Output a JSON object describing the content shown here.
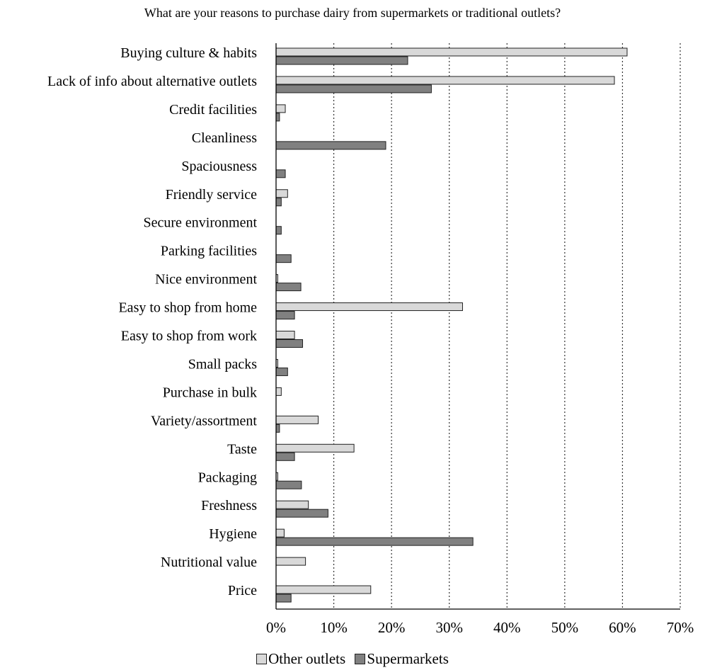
{
  "chart_data": {
    "type": "bar",
    "orientation": "horizontal",
    "title": "What are your reasons to purchase dairy from supermarkets or traditional outlets?",
    "categories": [
      "Buying culture & habits",
      "Lack of info about alternative outlets",
      "Credit facilities",
      "Cleanliness",
      "Spaciousness",
      "Friendly service",
      "Secure environment",
      "Parking facilities",
      "Nice environment",
      "Easy to shop from home",
      "Easy to shop from work",
      "Small packs",
      "Purchase in bulk",
      "Variety/assortment",
      "Taste",
      "Packaging",
      "Freshness",
      "Hygiene",
      "Nutritional value",
      "Price"
    ],
    "series": [
      {
        "name": "Other outlets",
        "color": "#d9d9d9",
        "values": [
          60.8,
          58.6,
          1.6,
          0,
          0,
          2.0,
          0,
          0,
          0.3,
          32.3,
          3.2,
          0.3,
          0.9,
          7.3,
          13.5,
          0.3,
          5.6,
          1.4,
          5.1,
          16.4
        ]
      },
      {
        "name": "Supermarkets",
        "color": "#808080",
        "values": [
          22.8,
          26.9,
          0.6,
          19.0,
          1.6,
          0.9,
          0.9,
          2.6,
          4.3,
          3.2,
          4.6,
          2.0,
          0,
          0.6,
          3.2,
          4.4,
          9.0,
          34.1,
          0,
          2.6
        ]
      }
    ],
    "xlim": [
      0,
      70
    ],
    "xticks": [
      0,
      10,
      20,
      30,
      40,
      50,
      60,
      70
    ],
    "xtick_labels": [
      "0%",
      "10%",
      "20%",
      "30%",
      "40%",
      "50%",
      "60%",
      "70%"
    ],
    "xlabel": "",
    "ylabel": "",
    "grid": "vertical dotted",
    "legend_position": "bottom"
  }
}
